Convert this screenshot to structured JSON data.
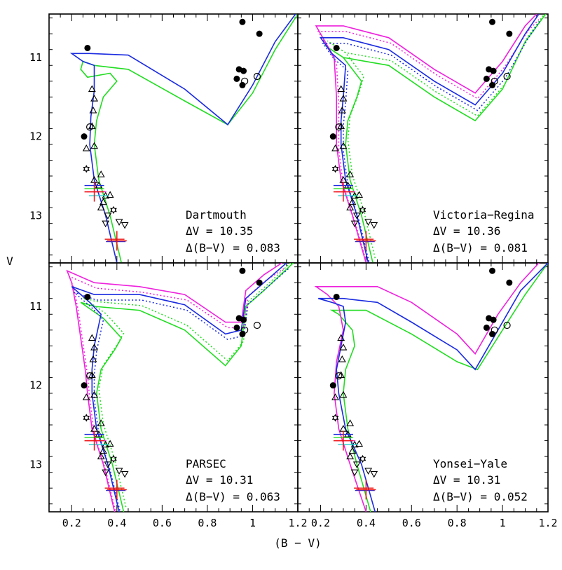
{
  "figure": {
    "xlabel": "(B − V)",
    "ylabel": "V"
  },
  "colors": {
    "blue": "#1a2be0",
    "green": "#22dd22",
    "magenta": "#ee22dd",
    "red": "#ee1111",
    "black": "#000000"
  },
  "chart_data": [
    {
      "type": "scatter",
      "panel": "top-left",
      "model": "Dartmouth",
      "dV": "ΔV = 10.35",
      "dBV": "Δ(B−V) = 0.083",
      "xlim": [
        0.1,
        1.2
      ],
      "ylim": [
        13.6,
        10.45
      ],
      "xticks": [],
      "yticks": [
        "11",
        "12",
        "13"
      ],
      "isochrones": [
        "blue",
        "green"
      ],
      "dotted": false
    },
    {
      "type": "scatter",
      "panel": "top-right",
      "model": "Victoria−Regina",
      "dV": "ΔV = 10.36",
      "dBV": "Δ(B−V) = 0.081",
      "xlim": [
        0.1,
        1.2
      ],
      "ylim": [
        13.6,
        10.45
      ],
      "xticks": [],
      "yticks": [],
      "isochrones": [
        "blue",
        "green",
        "magenta"
      ],
      "dotted": true
    },
    {
      "type": "scatter",
      "panel": "bottom-left",
      "model": "PARSEC",
      "dV": "ΔV = 10.31",
      "dBV": "Δ(B−V) = 0.063",
      "xlim": [
        0.1,
        1.2
      ],
      "ylim": [
        13.6,
        10.45
      ],
      "xticks": [
        "0.2",
        "0.4",
        "0.6",
        "0.8",
        "1",
        "1.2"
      ],
      "yticks": [
        "11",
        "12",
        "13"
      ],
      "isochrones": [
        "blue",
        "green",
        "magenta"
      ],
      "dotted": true
    },
    {
      "type": "scatter",
      "panel": "bottom-right",
      "model": "Yonsei−Yale",
      "dV": "ΔV = 10.31",
      "dBV": "Δ(B−V) = 0.052",
      "xlim": [
        0.1,
        1.2
      ],
      "ylim": [
        13.6,
        10.45
      ],
      "xticks": [
        "0.2",
        "0.4",
        "0.6",
        "0.8",
        "1",
        "1.2"
      ],
      "yticks": [],
      "isochrones": [
        "blue",
        "green",
        "magenta"
      ],
      "dotted": false
    }
  ],
  "stars": {
    "filled_circles": [
      [
        0.27,
        10.88
      ],
      [
        0.255,
        12.0
      ],
      [
        0.955,
        10.55
      ],
      [
        1.03,
        10.7
      ],
      [
        0.94,
        11.15
      ],
      [
        0.96,
        11.17
      ],
      [
        0.93,
        11.27
      ],
      [
        0.955,
        11.35
      ]
    ],
    "open_circles": [
      [
        0.28,
        11.88
      ],
      [
        0.965,
        11.3
      ],
      [
        1.02,
        11.24
      ]
    ],
    "triangles_up": [
      [
        0.29,
        11.4
      ],
      [
        0.3,
        11.52
      ],
      [
        0.295,
        11.67
      ],
      [
        0.29,
        11.87
      ],
      [
        0.3,
        12.12
      ],
      [
        0.265,
        12.15
      ],
      [
        0.33,
        12.48
      ],
      [
        0.3,
        12.55
      ],
      [
        0.32,
        12.62
      ],
      [
        0.35,
        12.75
      ],
      [
        0.37,
        12.74
      ],
      [
        0.34,
        12.83
      ],
      [
        0.33,
        12.9
      ]
    ],
    "triangles_down": [
      [
        0.36,
        13.0
      ],
      [
        0.41,
        13.08
      ],
      [
        0.435,
        13.12
      ],
      [
        0.35,
        13.1
      ]
    ],
    "stars6": [
      [
        0.265,
        12.41
      ],
      [
        0.385,
        12.93
      ]
    ],
    "red_crosses": [
      [
        0.3,
        12.7
      ],
      [
        0.4,
        13.32
      ]
    ],
    "cross_ticks": [
      [
        0.3,
        12.62
      ],
      [
        0.3,
        12.66
      ],
      [
        0.31,
        12.7
      ],
      [
        0.32,
        12.75
      ],
      [
        0.39,
        13.3
      ],
      [
        0.395,
        13.33
      ]
    ]
  },
  "isochrone_models": {
    "dartmouth": {
      "blue": [
        [
          0.4,
          13.6
        ],
        [
          0.35,
          13.0
        ],
        [
          0.3,
          12.55
        ],
        [
          0.28,
          12.1
        ],
        [
          0.285,
          11.75
        ],
        [
          0.3,
          11.42
        ],
        [
          0.3,
          11.1
        ],
        [
          0.25,
          11.05
        ],
        [
          0.2,
          10.95
        ],
        [
          0.28,
          10.95
        ],
        [
          0.45,
          10.97
        ],
        [
          0.7,
          11.4
        ],
        [
          0.89,
          11.85
        ],
        [
          1.0,
          11.35
        ],
        [
          1.1,
          10.8
        ],
        [
          1.19,
          10.45
        ]
      ],
      "green": [
        [
          0.42,
          13.6
        ],
        [
          0.37,
          13.0
        ],
        [
          0.32,
          12.55
        ],
        [
          0.3,
          12.1
        ],
        [
          0.31,
          11.8
        ],
        [
          0.34,
          11.5
        ],
        [
          0.4,
          11.3
        ],
        [
          0.37,
          11.2
        ],
        [
          0.27,
          11.25
        ],
        [
          0.24,
          11.15
        ],
        [
          0.25,
          11.05
        ],
        [
          0.3,
          11.1
        ],
        [
          0.45,
          11.15
        ],
        [
          0.7,
          11.55
        ],
        [
          0.89,
          11.85
        ],
        [
          1.0,
          11.45
        ],
        [
          1.1,
          10.9
        ],
        [
          1.2,
          10.45
        ]
      ]
    },
    "victoria": {
      "blue": [
        [
          0.41,
          13.6
        ],
        [
          0.36,
          13.0
        ],
        [
          0.31,
          12.55
        ],
        [
          0.29,
          12.1
        ],
        [
          0.29,
          11.8
        ],
        [
          0.3,
          11.5
        ],
        [
          0.31,
          11.1
        ],
        [
          0.25,
          10.95
        ],
        [
          0.2,
          10.75
        ],
        [
          0.3,
          10.75
        ],
        [
          0.5,
          10.9
        ],
        [
          0.7,
          11.3
        ],
        [
          0.88,
          11.6
        ],
        [
          1.0,
          11.2
        ],
        [
          1.1,
          10.7
        ],
        [
          1.16,
          10.45
        ]
      ],
      "green": [
        [
          0.43,
          13.6
        ],
        [
          0.38,
          13.0
        ],
        [
          0.33,
          12.55
        ],
        [
          0.31,
          12.1
        ],
        [
          0.32,
          11.8
        ],
        [
          0.36,
          11.5
        ],
        [
          0.38,
          11.3
        ],
        [
          0.3,
          11.0
        ],
        [
          0.22,
          10.85
        ],
        [
          0.3,
          11.0
        ],
        [
          0.5,
          11.1
        ],
        [
          0.7,
          11.5
        ],
        [
          0.88,
          11.8
        ],
        [
          1.0,
          11.4
        ],
        [
          1.1,
          10.8
        ],
        [
          1.19,
          10.45
        ]
      ],
      "magenta": [
        [
          0.4,
          13.6
        ],
        [
          0.34,
          13.0
        ],
        [
          0.29,
          12.55
        ],
        [
          0.27,
          12.1
        ],
        [
          0.27,
          11.8
        ],
        [
          0.27,
          11.5
        ],
        [
          0.26,
          11.0
        ],
        [
          0.22,
          10.8
        ],
        [
          0.18,
          10.6
        ],
        [
          0.3,
          10.6
        ],
        [
          0.5,
          10.75
        ],
        [
          0.7,
          11.15
        ],
        [
          0.88,
          11.45
        ],
        [
          1.0,
          11.05
        ],
        [
          1.1,
          10.6
        ],
        [
          1.15,
          10.45
        ]
      ]
    },
    "parsec": {
      "blue": [
        [
          0.41,
          13.6
        ],
        [
          0.36,
          13.0
        ],
        [
          0.31,
          12.55
        ],
        [
          0.29,
          12.1
        ],
        [
          0.29,
          11.8
        ],
        [
          0.3,
          11.5
        ],
        [
          0.33,
          11.1
        ],
        [
          0.28,
          10.95
        ],
        [
          0.2,
          10.75
        ],
        [
          0.3,
          10.85
        ],
        [
          0.5,
          10.85
        ],
        [
          0.7,
          10.98
        ],
        [
          0.88,
          11.35
        ],
        [
          0.95,
          11.3
        ],
        [
          0.97,
          10.9
        ],
        [
          1.05,
          10.7
        ],
        [
          1.15,
          10.45
        ]
      ],
      "green": [
        [
          0.43,
          13.6
        ],
        [
          0.38,
          13.0
        ],
        [
          0.33,
          12.55
        ],
        [
          0.31,
          12.1
        ],
        [
          0.33,
          11.8
        ],
        [
          0.39,
          11.55
        ],
        [
          0.42,
          11.4
        ],
        [
          0.34,
          11.15
        ],
        [
          0.24,
          10.95
        ],
        [
          0.3,
          11.0
        ],
        [
          0.5,
          11.05
        ],
        [
          0.7,
          11.3
        ],
        [
          0.88,
          11.75
        ],
        [
          0.95,
          11.5
        ],
        [
          0.97,
          11.0
        ],
        [
          1.05,
          10.8
        ],
        [
          1.18,
          10.45
        ]
      ],
      "magenta": [
        [
          0.39,
          13.6
        ],
        [
          0.34,
          13.0
        ],
        [
          0.29,
          12.55
        ],
        [
          0.27,
          12.1
        ],
        [
          0.26,
          11.8
        ],
        [
          0.24,
          11.4
        ],
        [
          0.22,
          11.0
        ],
        [
          0.2,
          10.7
        ],
        [
          0.18,
          10.55
        ],
        [
          0.3,
          10.7
        ],
        [
          0.5,
          10.75
        ],
        [
          0.7,
          10.85
        ],
        [
          0.88,
          11.2
        ],
        [
          0.95,
          11.2
        ],
        [
          0.97,
          10.8
        ],
        [
          1.05,
          10.6
        ],
        [
          1.13,
          10.45
        ]
      ]
    },
    "yonsei": {
      "blue": [
        [
          0.44,
          13.6
        ],
        [
          0.38,
          13.0
        ],
        [
          0.31,
          12.55
        ],
        [
          0.28,
          12.1
        ],
        [
          0.27,
          11.8
        ],
        [
          0.29,
          11.5
        ],
        [
          0.31,
          11.2
        ],
        [
          0.3,
          11.0
        ],
        [
          0.25,
          10.95
        ],
        [
          0.19,
          10.9
        ],
        [
          0.3,
          10.9
        ],
        [
          0.45,
          10.95
        ],
        [
          0.6,
          11.2
        ],
        [
          0.8,
          11.55
        ],
        [
          0.88,
          11.8
        ],
        [
          0.98,
          11.3
        ],
        [
          1.08,
          10.8
        ],
        [
          1.2,
          10.45
        ]
      ],
      "green": [
        [
          0.42,
          13.6
        ],
        [
          0.36,
          13.0
        ],
        [
          0.32,
          12.55
        ],
        [
          0.3,
          12.1
        ],
        [
          0.31,
          11.8
        ],
        [
          0.35,
          11.5
        ],
        [
          0.34,
          11.3
        ],
        [
          0.28,
          11.1
        ],
        [
          0.25,
          11.05
        ],
        [
          0.4,
          11.05
        ],
        [
          0.6,
          11.35
        ],
        [
          0.8,
          11.7
        ],
        [
          0.89,
          11.8
        ],
        [
          1.0,
          11.3
        ],
        [
          1.1,
          10.85
        ],
        [
          1.2,
          10.45
        ]
      ],
      "magenta": [
        [
          0.4,
          13.6
        ],
        [
          0.33,
          13.0
        ],
        [
          0.28,
          12.55
        ],
        [
          0.26,
          12.1
        ],
        [
          0.27,
          11.7
        ],
        [
          0.3,
          11.3
        ],
        [
          0.28,
          11.0
        ],
        [
          0.23,
          10.85
        ],
        [
          0.18,
          10.75
        ],
        [
          0.3,
          10.75
        ],
        [
          0.45,
          10.75
        ],
        [
          0.6,
          10.95
        ],
        [
          0.8,
          11.35
        ],
        [
          0.88,
          11.6
        ],
        [
          0.98,
          11.1
        ],
        [
          1.08,
          10.7
        ],
        [
          1.16,
          10.45
        ]
      ]
    }
  }
}
